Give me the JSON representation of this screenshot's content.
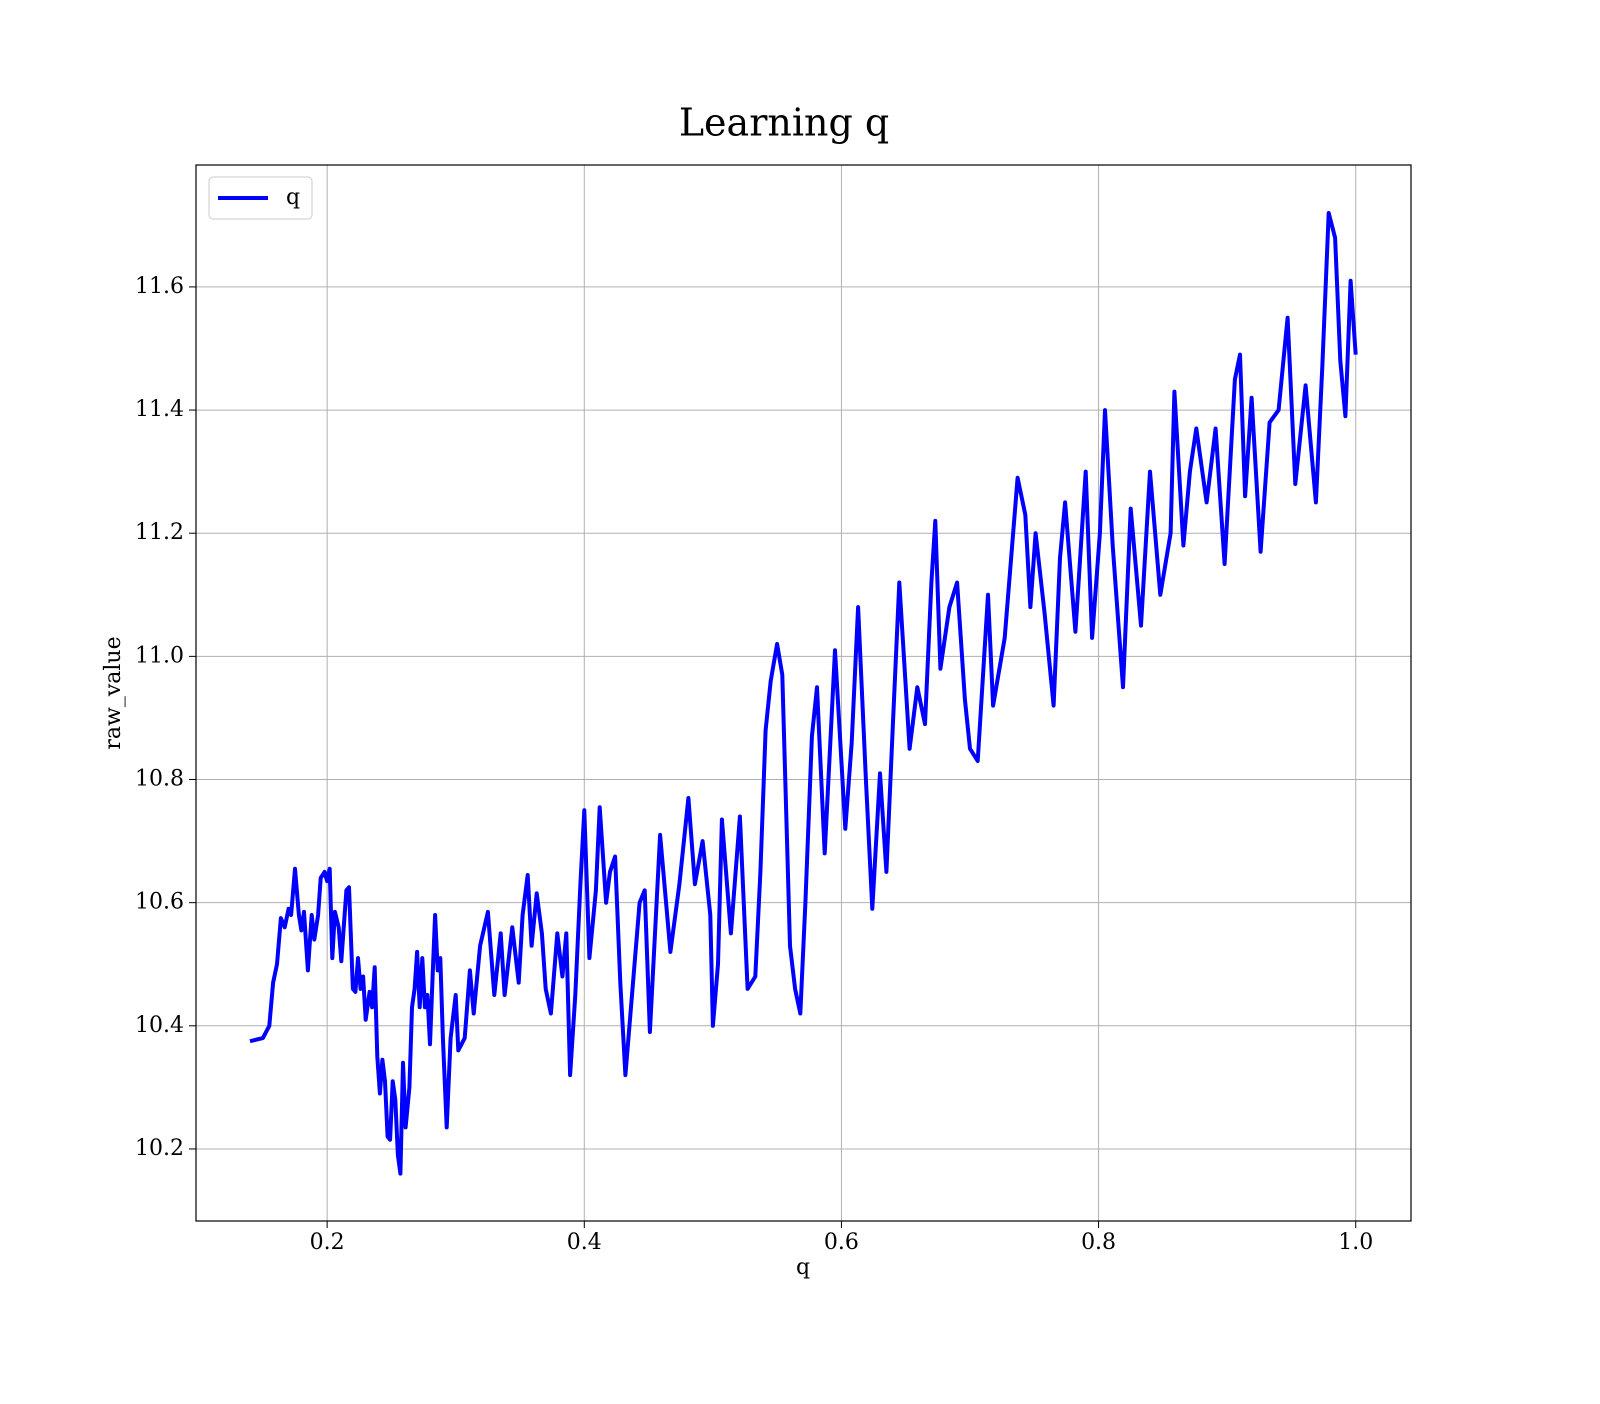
{
  "chart_data": {
    "type": "line",
    "title": "Learning q",
    "xlabel": "q",
    "ylabel": "raw_value",
    "x": [
      0.14,
      0.15,
      0.155,
      0.158,
      0.161,
      0.164,
      0.167,
      0.17,
      0.172,
      0.175,
      0.178,
      0.18,
      0.182,
      0.185,
      0.188,
      0.19,
      0.193,
      0.195,
      0.198,
      0.2,
      0.202,
      0.204,
      0.206,
      0.209,
      0.211,
      0.215,
      0.217,
      0.22,
      0.222,
      0.224,
      0.226,
      0.228,
      0.23,
      0.233,
      0.235,
      0.237,
      0.239,
      0.241,
      0.243,
      0.245,
      0.247,
      0.249,
      0.251,
      0.253,
      0.255,
      0.257,
      0.259,
      0.261,
      0.264,
      0.266,
      0.268,
      0.27,
      0.272,
      0.274,
      0.276,
      0.278,
      0.28,
      0.282,
      0.284,
      0.286,
      0.288,
      0.29,
      0.293,
      0.296,
      0.3,
      0.302,
      0.307,
      0.311,
      0.314,
      0.319,
      0.325,
      0.33,
      0.335,
      0.338,
      0.344,
      0.349,
      0.352,
      0.356,
      0.359,
      0.363,
      0.367,
      0.37,
      0.374,
      0.379,
      0.383,
      0.386,
      0.389,
      0.393,
      0.397,
      0.4,
      0.404,
      0.409,
      0.412,
      0.417,
      0.42,
      0.424,
      0.428,
      0.432,
      0.443,
      0.447,
      0.451,
      0.459,
      0.467,
      0.474,
      0.481,
      0.486,
      0.492,
      0.498,
      0.5,
      0.504,
      0.507,
      0.514,
      0.521,
      0.527,
      0.533,
      0.537,
      0.541,
      0.545,
      0.55,
      0.554,
      0.56,
      0.564,
      0.568,
      0.572,
      0.577,
      0.581,
      0.587,
      0.595,
      0.603,
      0.608,
      0.613,
      0.619,
      0.624,
      0.63,
      0.635,
      0.64,
      0.645,
      0.653,
      0.659,
      0.665,
      0.67,
      0.673,
      0.677,
      0.684,
      0.69,
      0.696,
      0.7,
      0.706,
      0.714,
      0.718,
      0.727,
      0.737,
      0.743,
      0.747,
      0.751,
      0.758,
      0.765,
      0.77,
      0.774,
      0.782,
      0.79,
      0.795,
      0.801,
      0.805,
      0.811,
      0.819,
      0.825,
      0.833,
      0.84,
      0.848,
      0.856,
      0.859,
      0.866,
      0.871,
      0.876,
      0.884,
      0.891,
      0.898,
      0.906,
      0.91,
      0.914,
      0.919,
      0.926,
      0.933,
      0.94,
      0.947,
      0.953,
      0.961,
      0.969,
      0.974,
      0.979,
      0.984,
      0.988,
      0.992,
      0.996,
      1.0
    ],
    "series": [
      {
        "name": "q",
        "color": "#0000ff",
        "values": [
          10.375,
          10.38,
          10.4,
          10.47,
          10.5,
          10.575,
          10.56,
          10.59,
          10.58,
          10.655,
          10.58,
          10.555,
          10.585,
          10.49,
          10.58,
          10.54,
          10.58,
          10.64,
          10.65,
          10.635,
          10.655,
          10.51,
          10.585,
          10.56,
          10.505,
          10.62,
          10.625,
          10.46,
          10.455,
          10.51,
          10.46,
          10.48,
          10.41,
          10.455,
          10.43,
          10.495,
          10.35,
          10.29,
          10.345,
          10.31,
          10.22,
          10.215,
          10.31,
          10.28,
          10.19,
          10.16,
          10.34,
          10.235,
          10.3,
          10.43,
          10.46,
          10.52,
          10.43,
          10.51,
          10.43,
          10.45,
          10.37,
          10.48,
          10.58,
          10.49,
          10.51,
          10.38,
          10.235,
          10.38,
          10.45,
          10.36,
          10.38,
          10.49,
          10.42,
          10.53,
          10.585,
          10.45,
          10.55,
          10.45,
          10.56,
          10.47,
          10.58,
          10.645,
          10.53,
          10.615,
          10.55,
          10.46,
          10.42,
          10.55,
          10.48,
          10.55,
          10.32,
          10.45,
          10.63,
          10.75,
          10.51,
          10.62,
          10.755,
          10.6,
          10.65,
          10.675,
          10.47,
          10.32,
          10.6,
          10.62,
          10.39,
          10.71,
          10.52,
          10.63,
          10.77,
          10.63,
          10.7,
          10.58,
          10.4,
          10.5,
          10.735,
          10.55,
          10.74,
          10.46,
          10.48,
          10.65,
          10.88,
          10.96,
          11.02,
          10.97,
          10.53,
          10.46,
          10.42,
          10.6,
          10.87,
          10.95,
          10.68,
          11.01,
          10.72,
          10.86,
          11.08,
          10.8,
          10.59,
          10.81,
          10.65,
          10.89,
          11.12,
          10.85,
          10.95,
          10.89,
          11.12,
          11.22,
          10.98,
          11.08,
          11.12,
          10.93,
          10.85,
          10.83,
          11.1,
          10.92,
          11.03,
          11.29,
          11.23,
          11.08,
          11.2,
          11.07,
          10.92,
          11.16,
          11.25,
          11.04,
          11.3,
          11.03,
          11.2,
          11.4,
          11.18,
          10.95,
          11.24,
          11.05,
          11.3,
          11.1,
          11.2,
          11.43,
          11.18,
          11.3,
          11.37,
          11.25,
          11.37,
          11.15,
          11.45,
          11.49,
          11.26,
          11.42,
          11.17,
          11.38,
          11.4,
          11.55,
          11.28,
          11.44,
          11.25,
          11.47,
          11.72,
          11.68,
          11.48,
          11.39,
          11.61,
          11.49
        ]
      }
    ],
    "xlim": [
      0.098,
      1.043
    ],
    "xticks": [
      0.2,
      0.4,
      0.6,
      0.8,
      {
        "value": 1,
        "label": "1.0"
      }
    ],
    "ylim": [
      10.083,
      11.798
    ],
    "yticks": [
      10.2,
      10.4,
      10.6,
      10.8,
      {
        "value": 11,
        "label": "11.0"
      },
      11.2,
      11.4,
      11.6
    ],
    "grid": true,
    "legend": "upper left"
  }
}
